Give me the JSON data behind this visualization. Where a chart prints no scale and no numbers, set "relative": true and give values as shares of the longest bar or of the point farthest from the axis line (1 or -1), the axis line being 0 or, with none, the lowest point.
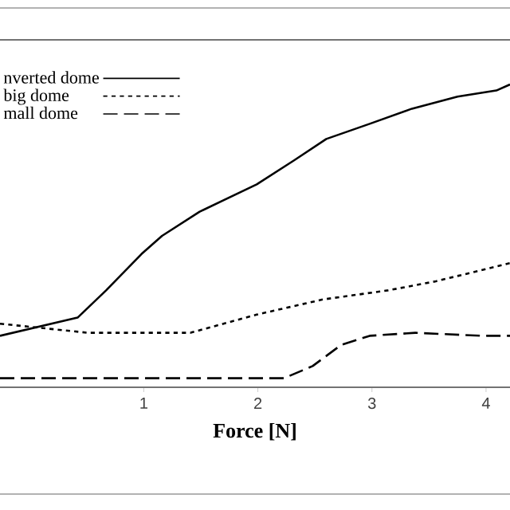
{
  "chart_data": {
    "type": "line",
    "relative": true,
    "xlabel": "Force [N]",
    "xlim": [
      -0.26,
      4.21
    ],
    "xticks": [
      1,
      2,
      3,
      4
    ],
    "legend": "top left",
    "grid": false,
    "marker": "none",
    "series": [
      {
        "name": "nverted dome",
        "color": "#000000",
        "line_style": "solid",
        "x": [
          -0.26,
          0.42,
          0.67,
          0.98,
          1.16,
          1.49,
          1.99,
          2.32,
          2.6,
          2.98,
          3.35,
          3.75,
          4.09,
          4.21
        ],
        "values": [
          0.17,
          0.23,
          0.32,
          0.44,
          0.5,
          0.58,
          0.67,
          0.75,
          0.82,
          0.87,
          0.92,
          0.96,
          0.98,
          1
        ]
      },
      {
        "name": "big dome",
        "color": "#000000",
        "line_style": "dotted",
        "x": [
          -0.26,
          0.51,
          1.41,
          1.99,
          2.57,
          3.14,
          3.56,
          4.21
        ],
        "values": [
          0.21,
          0.18,
          0.18,
          0.24,
          0.29,
          0.32,
          0.35,
          0.41
        ]
      },
      {
        "name": "mall dome",
        "color": "#000000",
        "line_style": "dashed",
        "x": [
          -0.26,
          2.23,
          2.48,
          2.73,
          2.98,
          3.38,
          3.96,
          4.21
        ],
        "values": [
          0.03,
          0.03,
          0.07,
          0.14,
          0.17,
          0.18,
          0.17,
          0.17
        ]
      }
    ]
  }
}
